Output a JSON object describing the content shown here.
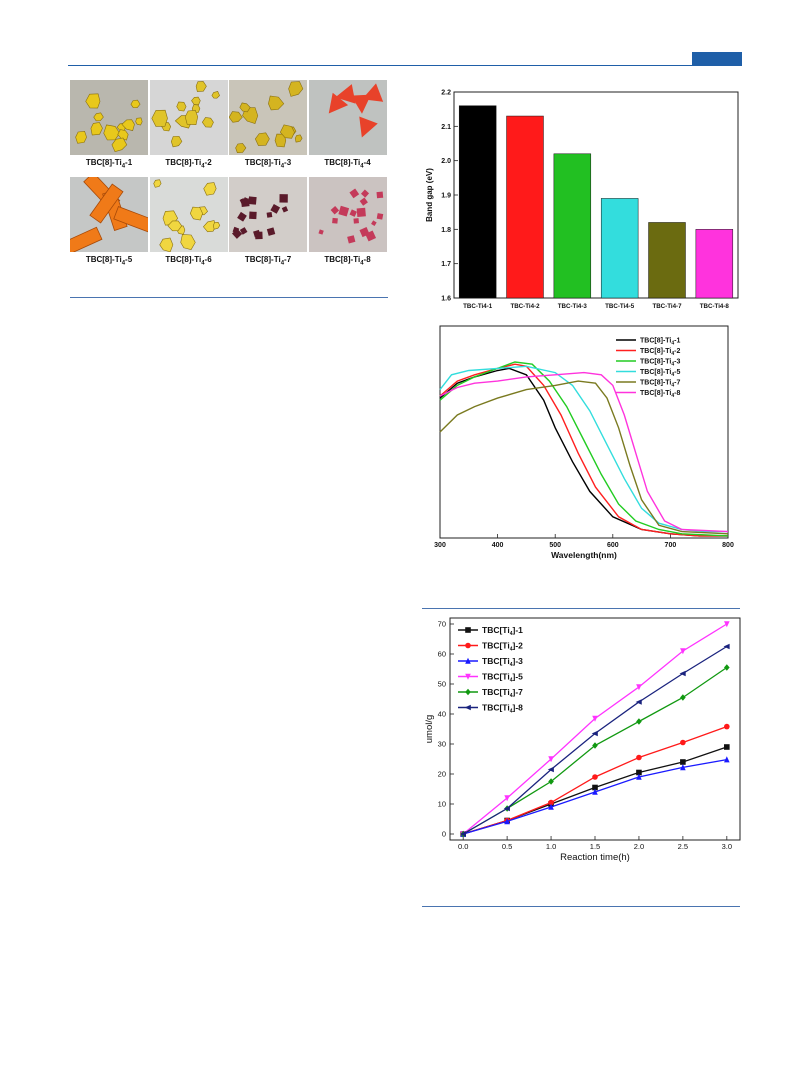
{
  "photos": {
    "labels": [
      "TBC[8]-Ti4-1",
      "TBC[8]-Ti4-2",
      "TBC[8]-Ti4-3",
      "TBC[8]-Ti4-4",
      "TBC[8]-Ti4-5",
      "TBC[8]-Ti4-6",
      "TBC[8]-Ti4-7",
      "TBC[8]-Ti4-8"
    ],
    "backgrounds": [
      "#b9b7ae",
      "#d6d6d6",
      "#c9c5b9",
      "#bfc2c0",
      "#c5c7c6",
      "#d9dbd9",
      "#d2cdc9",
      "#cbc3c1"
    ],
    "crystal_colors": [
      "#e8c81c",
      "#e0c42a",
      "#d4b420",
      "#e8422a",
      "#f07a18",
      "#f0d640",
      "#5a1a2a",
      "#c43a5a"
    ]
  },
  "chart_data": [
    {
      "type": "bar",
      "ylabel": "Band gap (eV)",
      "categories": [
        "TBC-Ti4-1",
        "TBC-Ti4-2",
        "TBC-Ti4-3",
        "TBC-Ti4-5",
        "TBC-Ti4-7",
        "TBC-Ti4-8"
      ],
      "values": [
        2.16,
        2.13,
        2.02,
        1.89,
        1.82,
        1.8
      ],
      "colors": [
        "#000000",
        "#ff1a1a",
        "#22c022",
        "#33dddd",
        "#6b6b10",
        "#ff33dd"
      ],
      "ylim": [
        1.6,
        2.2
      ],
      "yticks": [
        "1.6",
        "1.7",
        "1.8",
        "1.9",
        "2.0",
        "2.1",
        "2.2"
      ]
    },
    {
      "type": "line",
      "xlabel": "Wavelength(nm)",
      "xlim": [
        300,
        800
      ],
      "xticks": [
        "300",
        "400",
        "500",
        "600",
        "700",
        "800"
      ],
      "legend_position": "top-right",
      "series": [
        {
          "name": "TBC[8]-Ti4-1",
          "color": "#000000",
          "x": [
            300,
            330,
            360,
            400,
            420,
            450,
            480,
            500,
            530,
            560,
            600,
            650,
            700,
            750,
            800
          ],
          "y": [
            0.66,
            0.73,
            0.76,
            0.79,
            0.8,
            0.77,
            0.65,
            0.52,
            0.36,
            0.22,
            0.1,
            0.04,
            0.02,
            0.01,
            0.01
          ]
        },
        {
          "name": "TBC[8]-Ti4-2",
          "color": "#ff2020",
          "x": [
            300,
            330,
            360,
            400,
            430,
            450,
            480,
            510,
            540,
            570,
            610,
            650,
            700,
            750,
            800
          ],
          "y": [
            0.67,
            0.74,
            0.77,
            0.8,
            0.82,
            0.81,
            0.72,
            0.58,
            0.4,
            0.24,
            0.1,
            0.04,
            0.02,
            0.01,
            0.01
          ]
        },
        {
          "name": "TBC[8]-Ti4-3",
          "color": "#22cc22",
          "x": [
            300,
            330,
            360,
            400,
            430,
            460,
            490,
            520,
            550,
            580,
            610,
            640,
            680,
            720,
            800
          ],
          "y": [
            0.65,
            0.72,
            0.76,
            0.8,
            0.83,
            0.82,
            0.74,
            0.62,
            0.46,
            0.3,
            0.16,
            0.08,
            0.04,
            0.02,
            0.01
          ]
        },
        {
          "name": "TBC[8]-Ti4-5",
          "color": "#33dddd",
          "x": [
            300,
            320,
            350,
            400,
            450,
            500,
            530,
            560,
            590,
            620,
            650,
            680,
            720,
            760,
            800
          ],
          "y": [
            0.7,
            0.77,
            0.79,
            0.8,
            0.81,
            0.78,
            0.72,
            0.6,
            0.44,
            0.28,
            0.14,
            0.07,
            0.04,
            0.03,
            0.03
          ]
        },
        {
          "name": "TBC[8]-Ti4-7",
          "color": "#7a7a20",
          "x": [
            300,
            330,
            360,
            400,
            450,
            500,
            540,
            570,
            590,
            610,
            630,
            650,
            680,
            720,
            800
          ],
          "y": [
            0.5,
            0.58,
            0.62,
            0.66,
            0.7,
            0.72,
            0.74,
            0.73,
            0.66,
            0.52,
            0.34,
            0.18,
            0.06,
            0.03,
            0.02
          ]
        },
        {
          "name": "TBC[8]-Ti4-8",
          "color": "#ff33dd",
          "x": [
            300,
            330,
            360,
            400,
            450,
            500,
            550,
            580,
            600,
            620,
            640,
            660,
            690,
            720,
            800
          ],
          "y": [
            0.67,
            0.71,
            0.73,
            0.74,
            0.76,
            0.77,
            0.78,
            0.77,
            0.72,
            0.58,
            0.4,
            0.22,
            0.08,
            0.04,
            0.03
          ]
        }
      ]
    },
    {
      "type": "line",
      "xlabel": "Reaction time(h)",
      "ylabel": "umol/g",
      "xlim": [
        -0.15,
        3.15
      ],
      "ylim": [
        -2,
        72
      ],
      "xticks": [
        "0.0",
        "0.5",
        "1.0",
        "1.5",
        "2.0",
        "2.5",
        "3.0"
      ],
      "yticks": [
        "0",
        "10",
        "20",
        "30",
        "40",
        "50",
        "60",
        "70"
      ],
      "legend_position": "top-left",
      "x": [
        0,
        0.5,
        1.0,
        1.5,
        2.0,
        2.5,
        3.0
      ],
      "series": [
        {
          "name": "TBC[Ti4]-1",
          "color": "#111111",
          "marker": "square",
          "values": [
            0,
            4.5,
            10,
            15.5,
            20.5,
            24,
            29
          ]
        },
        {
          "name": "TBC[Ti4]-2",
          "color": "#ff1a1a",
          "marker": "circle",
          "values": [
            0,
            4.5,
            10.5,
            19,
            25.5,
            30.5,
            35.8
          ]
        },
        {
          "name": "TBC[Ti4]-3",
          "color": "#1a1aff",
          "marker": "triangle-up",
          "values": [
            0,
            4.2,
            9,
            14,
            19,
            22.2,
            24.8
          ]
        },
        {
          "name": "TBC[Ti4]-5",
          "color": "#ff33ff",
          "marker": "triangle-down",
          "values": [
            0,
            12,
            25,
            38.5,
            49,
            61,
            70
          ]
        },
        {
          "name": "TBC[Ti4]-7",
          "color": "#119911",
          "marker": "diamond",
          "values": [
            0,
            8.5,
            17.5,
            29.5,
            37.5,
            45.5,
            55.5
          ]
        },
        {
          "name": "TBC[Ti4]-8",
          "color": "#1a237e",
          "marker": "left-triangle",
          "values": [
            0,
            8.5,
            21.5,
            33.5,
            44,
            53.5,
            62.5
          ]
        }
      ]
    }
  ]
}
